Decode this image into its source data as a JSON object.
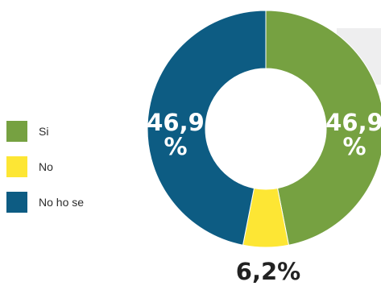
{
  "chart_data": {
    "type": "pie",
    "donut": true,
    "title": "",
    "slices": [
      {
        "label": "Si",
        "value": 46.9,
        "display": [
          "46,9",
          "%"
        ],
        "color": "#76a141"
      },
      {
        "label": "No",
        "value": 6.2,
        "display": [
          "6,2%"
        ],
        "color": "#fde634"
      },
      {
        "label": "No ho se",
        "value": 46.9,
        "display": [
          "46,9",
          "%"
        ],
        "color": "#0d5c83"
      }
    ],
    "legend_position": "left"
  }
}
